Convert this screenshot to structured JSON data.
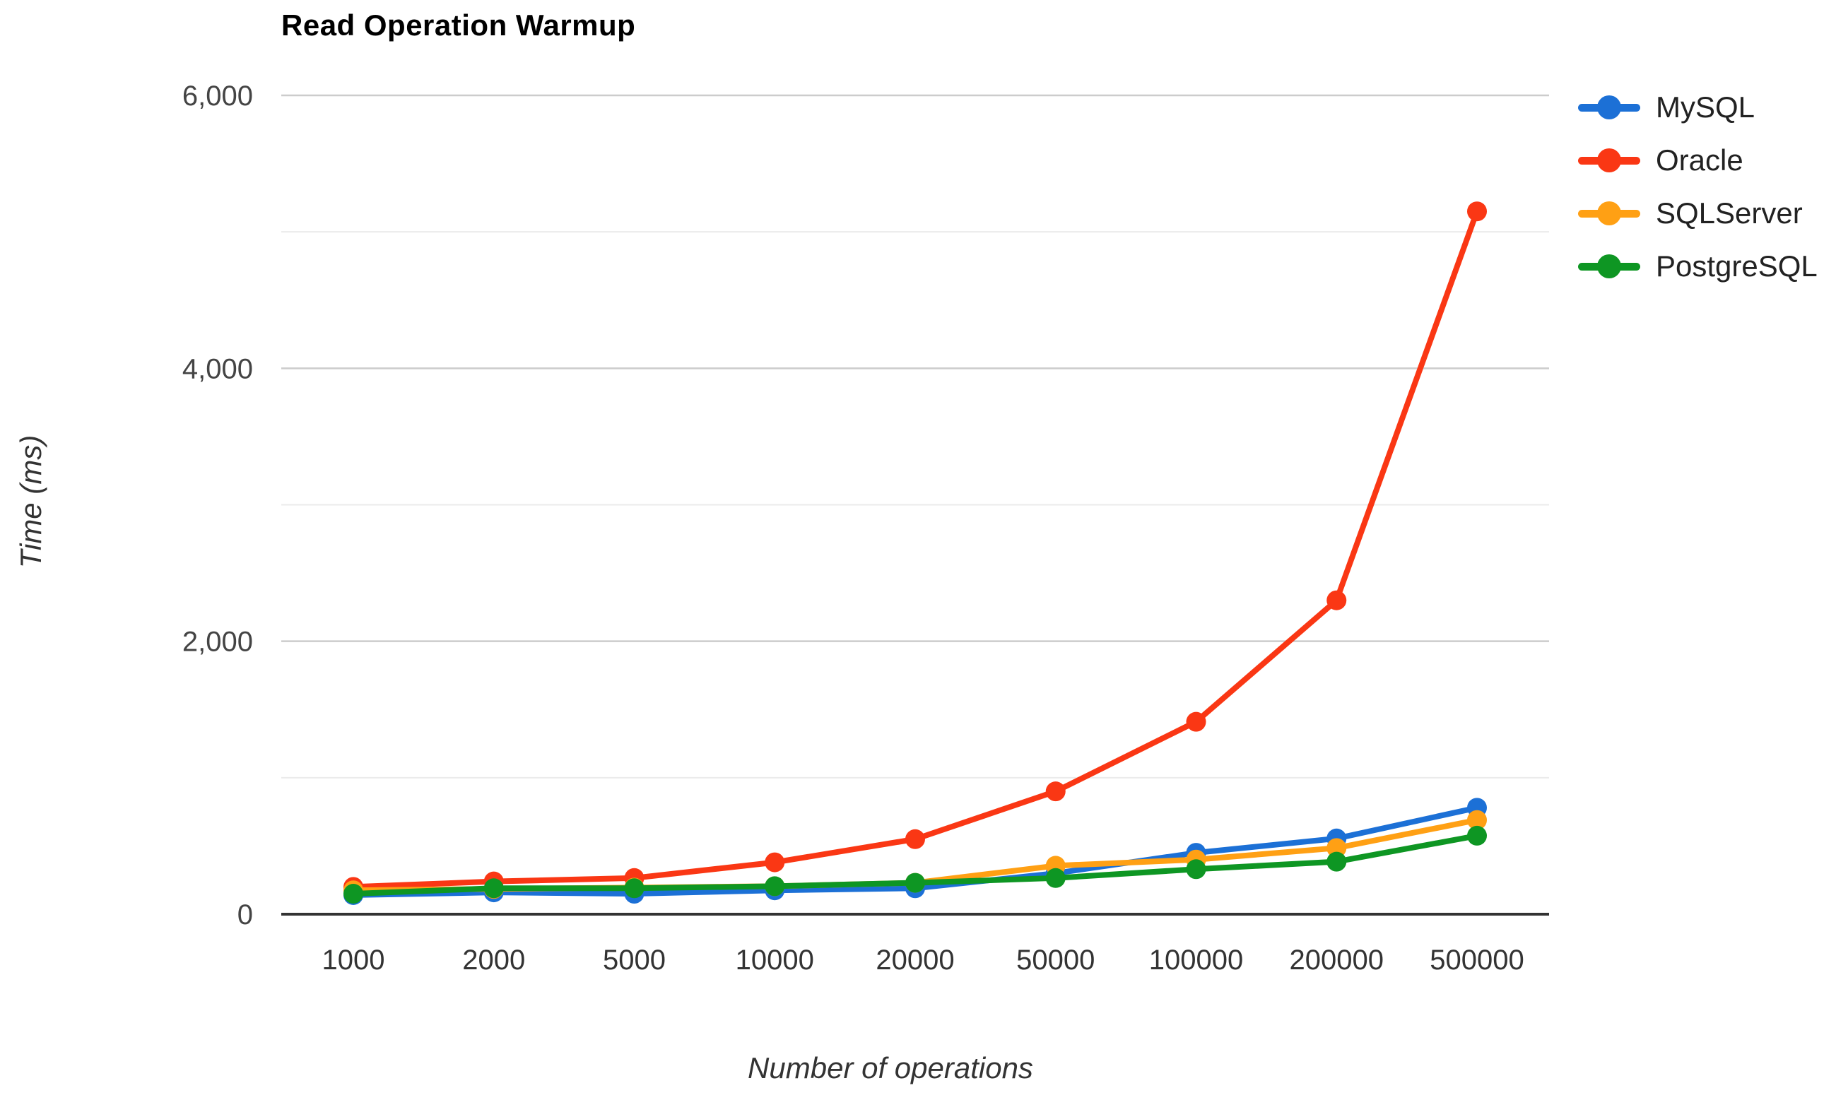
{
  "chart_data": {
    "type": "line",
    "title": "Read Operation Warmup",
    "xlabel": "Number of operations",
    "ylabel": "Time (ms)",
    "categories": [
      "1000",
      "2000",
      "5000",
      "10000",
      "20000",
      "50000",
      "100000",
      "200000",
      "500000"
    ],
    "series": [
      {
        "name": "MySQL",
        "color": "#1c70d6",
        "values": [
          140,
          160,
          150,
          175,
          190,
          300,
          450,
          555,
          780
        ]
      },
      {
        "name": "Oracle",
        "color": "#fa3714",
        "values": [
          200,
          240,
          265,
          380,
          550,
          900,
          1410,
          2300,
          5150
        ]
      },
      {
        "name": "SQLServer",
        "color": "#ffa014",
        "values": [
          175,
          185,
          195,
          205,
          230,
          355,
          400,
          485,
          690
        ]
      },
      {
        "name": "PostgreSQL",
        "color": "#0e9623",
        "values": [
          150,
          190,
          190,
          205,
          230,
          265,
          330,
          385,
          575
        ]
      }
    ],
    "ylim": [
      0,
      6000
    ],
    "y_ticks": [
      0,
      2000,
      4000,
      6000
    ],
    "y_tick_labels": [
      "0",
      "2,000",
      "4,000",
      "6,000"
    ],
    "y_minor_ticks": [
      1000,
      3000,
      5000
    ],
    "grid": true,
    "legend_position": "right"
  },
  "colors": {
    "background": "#ffffff",
    "grid_major": "#cccccc",
    "grid_minor": "#ebebeb",
    "axis_line": "#333333",
    "y_tick_text": "#444444",
    "x_tick_text": "#333333",
    "title_text": "#000000",
    "axis_title_text": "#333333",
    "legend_text": "#222222"
  }
}
